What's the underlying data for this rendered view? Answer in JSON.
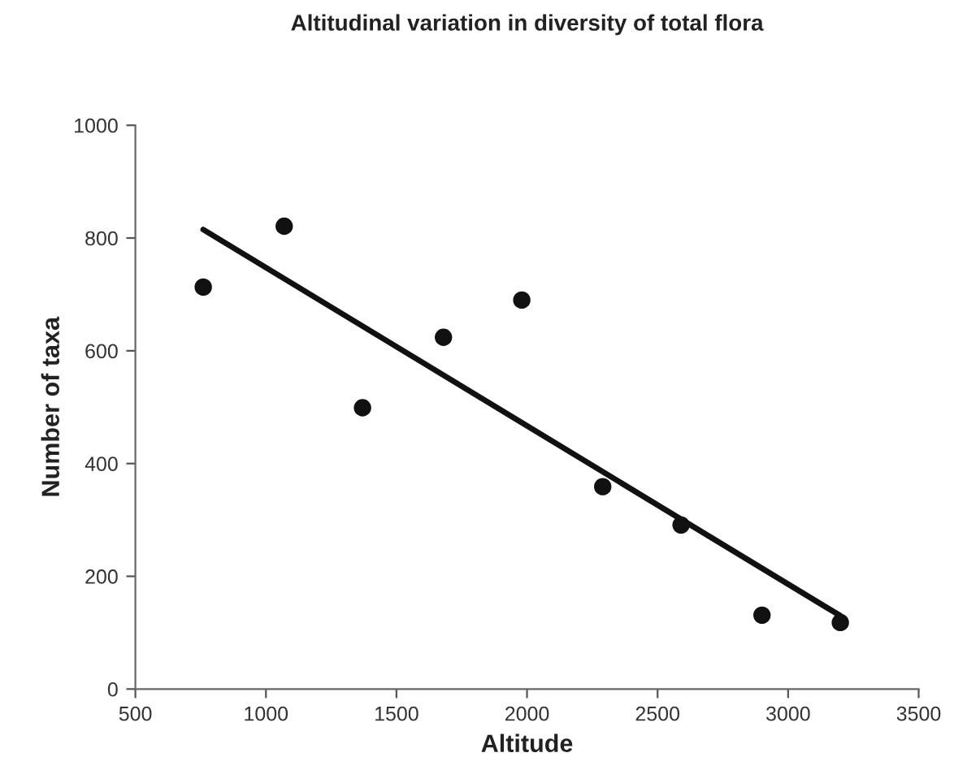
{
  "chart_data": {
    "type": "scatter",
    "title": "Altitudinal variation in diversity of total flora",
    "xlabel": "Altitude",
    "ylabel": "Number of taxa",
    "series": [
      {
        "color": "#111111",
        "marker": "circle",
        "x": [
          760,
          1070,
          1370,
          1680,
          1980,
          2290,
          2590,
          2900,
          3200
        ],
        "values": [
          713,
          821,
          499,
          624,
          690,
          359,
          291,
          131,
          118
        ]
      },
      {
        "type": "line",
        "color": "#111111",
        "line_style": "solid",
        "x": [
          760,
          3200
        ],
        "values": [
          815,
          130
        ]
      }
    ],
    "xlim": [
      500,
      3500
    ],
    "xticks": [
      500,
      1000,
      1500,
      2000,
      2500,
      3000,
      3500
    ],
    "ylim": [
      0,
      1000
    ],
    "yticks": [
      0,
      200,
      400,
      600,
      800,
      1000
    ],
    "grid": false,
    "legend": false
  }
}
